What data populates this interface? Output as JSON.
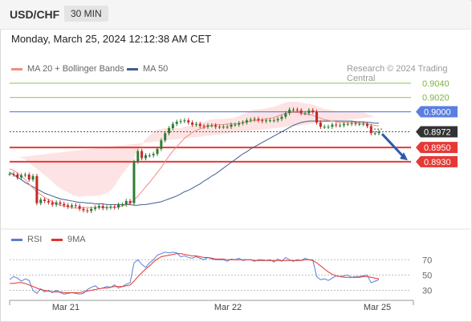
{
  "header": {
    "symbol": "USD/CHF",
    "timeframe": "30 MIN"
  },
  "timestamp": "Monday, March 25, 2024 12:12:38 AM CET",
  "legend_top": [
    {
      "label": "MA 20 + Bollinger Bands",
      "color": "#f28b82"
    },
    {
      "label": "MA 50",
      "color": "#3f5f8f"
    }
  ],
  "legend_bottom": [
    {
      "label": "RSI",
      "color": "#5b7fd6"
    },
    {
      "label": "9MA",
      "color": "#e3342f"
    }
  ],
  "source": "Research © 2024 Trading Central",
  "colors": {
    "up": "#2e7d32",
    "down": "#c62828",
    "support": "#e53935",
    "resistance_green": "#8bc34a",
    "resistance_blue": "#5b7fe0",
    "current": "#333333",
    "ma50": "#3f5f8f",
    "ma20": "#f28b82",
    "band": "#fde0e0",
    "arrow": "#2f5aa8"
  },
  "chart_data": [
    {
      "type": "line",
      "title": "USD/CHF 30 MIN",
      "x_ticks": [
        "Mar 21",
        "Mar 22",
        "Mar 25"
      ],
      "levels": [
        {
          "value": 0.904,
          "label": "0.9040",
          "kind": "resistance_green"
        },
        {
          "value": 0.902,
          "label": "0.9020",
          "kind": "resistance_green"
        },
        {
          "value": 0.9,
          "label": "0.9000",
          "kind": "resistance_blue"
        },
        {
          "value": 0.8972,
          "label": "0.8972",
          "kind": "current"
        },
        {
          "value": 0.895,
          "label": "0.8950",
          "kind": "support"
        },
        {
          "value": 0.893,
          "label": "0.8930",
          "kind": "support"
        }
      ],
      "ylim": [
        0.8848,
        0.905
      ],
      "price": [
        0.8913,
        0.8912,
        0.8908,
        0.8911,
        0.8912,
        0.8905,
        0.891,
        0.8872,
        0.8877,
        0.8875,
        0.8873,
        0.887,
        0.8873,
        0.8871,
        0.8869,
        0.8867,
        0.8869,
        0.8868,
        0.8864,
        0.8862,
        0.8861,
        0.8864,
        0.8866,
        0.8868,
        0.8865,
        0.8866,
        0.8867,
        0.8866,
        0.887,
        0.887,
        0.8875,
        0.8872,
        0.893,
        0.8945,
        0.8935,
        0.8939,
        0.8939,
        0.8941,
        0.8948,
        0.896,
        0.897,
        0.8977,
        0.8983,
        0.8986,
        0.8987,
        0.8988,
        0.8985,
        0.8982,
        0.8983,
        0.898,
        0.8979,
        0.8981,
        0.8981,
        0.8979,
        0.8979,
        0.8979,
        0.8979,
        0.8982,
        0.8982,
        0.8984,
        0.8985,
        0.8988,
        0.8989,
        0.899,
        0.8988,
        0.8987,
        0.8988,
        0.8988,
        0.8988,
        0.899,
        0.8993,
        0.8998,
        0.9003,
        0.9003,
        0.9002,
        0.8998,
        0.8998,
        0.9002,
        0.9,
        0.8985,
        0.8979,
        0.8979,
        0.8979,
        0.8982,
        0.8981,
        0.8981,
        0.8983,
        0.8983,
        0.8984,
        0.8983,
        0.8983,
        0.8983,
        0.898,
        0.897,
        0.897,
        0.8972
      ],
      "ma50": [
        0.8915,
        0.8912,
        0.8908,
        0.8905,
        0.8901,
        0.8898,
        0.8895,
        0.8892,
        0.8889,
        0.8886,
        0.8884,
        0.8882,
        0.888,
        0.8878,
        0.8877,
        0.8876,
        0.8875,
        0.8874,
        0.8873,
        0.8873,
        0.8872,
        0.8872,
        0.8871,
        0.8871,
        0.8871,
        0.887,
        0.887,
        0.887,
        0.887,
        0.887,
        0.887,
        0.887,
        0.8869,
        0.8869,
        0.887,
        0.887,
        0.8871,
        0.8872,
        0.8873,
        0.8874,
        0.8876,
        0.8878,
        0.888,
        0.8882,
        0.8885,
        0.8888,
        0.889,
        0.8893,
        0.8896,
        0.8899,
        0.8903,
        0.8906,
        0.891,
        0.8913,
        0.8917,
        0.8921,
        0.8925,
        0.8929,
        0.8933,
        0.8937,
        0.8941,
        0.8944,
        0.8948,
        0.8951,
        0.8954,
        0.8957,
        0.896,
        0.8963,
        0.8966,
        0.8969,
        0.8972,
        0.8975,
        0.8978,
        0.8981,
        0.8983,
        0.8985,
        0.8986,
        0.8987,
        0.8987,
        0.8987,
        0.8987,
        0.8987,
        0.8987,
        0.8987,
        0.8987,
        0.8987,
        0.8987,
        0.8987,
        0.8987,
        0.8986,
        0.8986,
        0.8986,
        0.8985,
        0.8985,
        0.8984,
        0.8984
      ],
      "ma20": [
        0.892,
        0.8918,
        0.8914,
        0.891,
        0.8905,
        0.8899,
        0.8893,
        0.8888,
        0.8884,
        0.888,
        0.8877,
        0.8874,
        0.8871,
        0.8869,
        0.8868,
        0.8867,
        0.8866,
        0.8865,
        0.8865,
        0.8866,
        0.8866,
        0.8866,
        0.8866,
        0.8866,
        0.8866,
        0.8866,
        0.8866,
        0.8866,
        0.8867,
        0.8868,
        0.887,
        0.8872,
        0.8876,
        0.8882,
        0.8888,
        0.8895,
        0.8901,
        0.8908,
        0.8915,
        0.8922,
        0.893,
        0.8938,
        0.8945,
        0.8951,
        0.8957,
        0.8963,
        0.8967,
        0.8971,
        0.8974,
        0.8976,
        0.8978,
        0.898,
        0.8981,
        0.8982,
        0.8982,
        0.8982,
        0.8983,
        0.8983,
        0.8983,
        0.8984,
        0.8985,
        0.8986,
        0.8987,
        0.8988,
        0.8988,
        0.8989,
        0.899,
        0.8991,
        0.8992,
        0.8994,
        0.8996,
        0.8998,
        0.8999,
        0.8999,
        0.8999,
        0.8998,
        0.8997,
        0.8996,
        0.8995,
        0.8993,
        0.8991,
        0.8989,
        0.8988,
        0.8987,
        0.8986,
        0.8985,
        0.8985,
        0.8985,
        0.8985,
        0.8985,
        0.8984,
        0.8984,
        0.8983,
        0.8982,
        0.8981,
        0.898
      ],
      "bb_width": [
        0.0015,
        0.0018,
        0.0022,
        0.0026,
        0.0028,
        0.003,
        0.0031,
        0.0032,
        0.0032,
        0.0031,
        0.003,
        0.0028,
        0.0026,
        0.0024,
        0.0022,
        0.002,
        0.0018,
        0.0017,
        0.0016,
        0.0016,
        0.0016,
        0.0016,
        0.0016,
        0.0017,
        0.0018,
        0.002,
        0.0024,
        0.003,
        0.0038,
        0.0045,
        0.005,
        0.0055,
        0.006,
        0.0064,
        0.0066,
        0.0067,
        0.0066,
        0.0064,
        0.006,
        0.0054,
        0.0047,
        0.004,
        0.0033,
        0.0026,
        0.002,
        0.0016,
        0.0013,
        0.0011,
        0.001,
        0.0009,
        0.0008,
        0.0008,
        0.0008,
        0.0008,
        0.0008,
        0.0008,
        0.0008,
        0.0008,
        0.0009,
        0.001,
        0.0012,
        0.0013,
        0.0014,
        0.0015,
        0.0015,
        0.0015,
        0.0015,
        0.0015,
        0.0015,
        0.0015,
        0.0015,
        0.0015,
        0.0015,
        0.0015,
        0.0015,
        0.0015,
        0.0015,
        0.0015,
        0.0015,
        0.0015,
        0.0015,
        0.0015,
        0.0015,
        0.0015,
        0.0015,
        0.0015,
        0.0015,
        0.0015,
        0.0015,
        0.0015,
        0.0015,
        0.0015,
        0.0014,
        0.0013,
        0.0012
      ],
      "projection": {
        "from": 0.8969,
        "to": 0.8932
      }
    },
    {
      "type": "line",
      "y_ticks": [
        70,
        50,
        30
      ],
      "ylim": [
        20,
        85
      ],
      "rsi": [
        44,
        48,
        46,
        42,
        45,
        43,
        30,
        26,
        32,
        28,
        30,
        27,
        30,
        27,
        25,
        26,
        27,
        26,
        25,
        26,
        31,
        34,
        36,
        32,
        33,
        35,
        34,
        37,
        33,
        35,
        38,
        40,
        66,
        70,
        64,
        60,
        66,
        70,
        76,
        78,
        80,
        79,
        80,
        79,
        74,
        75,
        73,
        72,
        74,
        72,
        70,
        73,
        71,
        70,
        70,
        70,
        68,
        71,
        70,
        72,
        69,
        70,
        70,
        68,
        70,
        70,
        69,
        70,
        67,
        71,
        68,
        73,
        70,
        68,
        70,
        69,
        72,
        70,
        70,
        48,
        44,
        45,
        43,
        46,
        49,
        48,
        49,
        50,
        47,
        48,
        48,
        49,
        50,
        40,
        42,
        44
      ],
      "ma9": [
        39,
        39,
        40,
        40,
        39,
        37,
        35,
        33,
        31,
        30,
        29,
        28,
        28,
        28,
        27,
        27,
        27,
        27,
        27,
        28,
        29,
        30,
        31,
        32,
        33,
        33,
        34,
        35,
        35,
        35,
        36,
        37,
        42,
        48,
        53,
        58,
        62,
        67,
        71,
        74,
        75,
        76,
        77,
        78,
        78,
        77,
        76,
        75,
        75,
        74,
        73,
        73,
        72,
        71,
        71,
        71,
        70,
        70,
        70,
        70,
        70,
        70,
        70,
        69,
        69,
        69,
        69,
        69,
        69,
        69,
        69,
        69,
        69,
        69,
        69,
        69,
        70,
        70,
        69,
        66,
        62,
        58,
        54,
        51,
        49,
        48,
        47,
        47,
        47,
        47,
        47,
        48,
        48,
        47,
        46,
        45
      ]
    }
  ]
}
